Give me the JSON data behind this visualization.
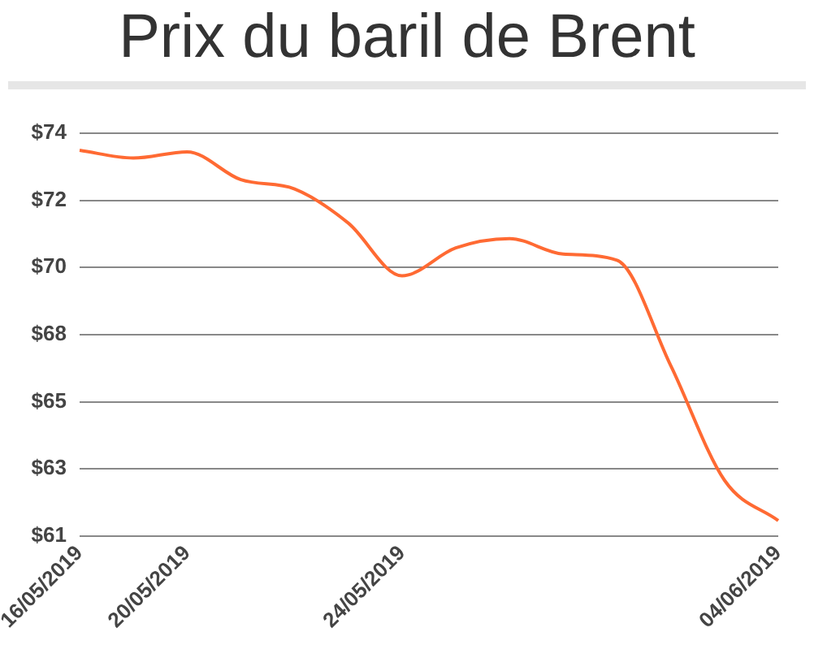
{
  "chart_data": {
    "type": "line",
    "title": "Prix du baril de Brent",
    "categories": [
      "16/05/2019",
      null,
      "20/05/2019",
      null,
      null,
      null,
      "24/05/2019",
      null,
      null,
      null,
      null,
      null,
      null,
      "04/06/2019"
    ],
    "series": [
      {
        "color": "#ff6a33",
        "values": [
          73.45,
          73.2,
          73.4,
          72.5,
          72.2,
          71.1,
          69.4,
          70.3,
          70.6,
          70.1,
          69.9,
          66.5,
          62.8,
          61.5
        ]
      }
    ],
    "ylim": [
      61,
      74
    ],
    "yticks": [
      {
        "value": 61,
        "label": "$61"
      },
      {
        "value": 63.17,
        "label": "$63"
      },
      {
        "value": 65.33,
        "label": "$65"
      },
      {
        "value": 67.5,
        "label": "$68"
      },
      {
        "value": 69.67,
        "label": "$70"
      },
      {
        "value": 71.83,
        "label": "$72"
      },
      {
        "value": 74,
        "label": "$74"
      }
    ],
    "grid": "y",
    "legend": false,
    "marker": "none",
    "line_style": "solid"
  }
}
